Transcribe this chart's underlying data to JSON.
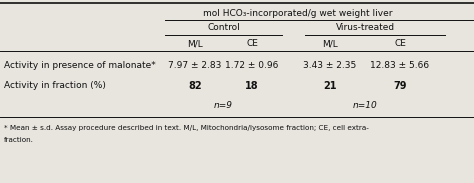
{
  "title": "mol HCO₃-incorporated/g wet weight liver",
  "group1_label": "Control",
  "group2_label": "Virus-treated",
  "col_headers": [
    "M/L",
    "CE",
    "M/L",
    "CE"
  ],
  "row1_label": "Activity in presence of malonate*",
  "row2_label": "Activity in fraction (%)",
  "row1_values": [
    "7.97 ± 2.83",
    "1.72 ± 0.96",
    "3.43 ± 2.35",
    "12.83 ± 5.66"
  ],
  "row2_values": [
    "82",
    "18",
    "21",
    "79"
  ],
  "n_control": "n=9",
  "n_virus": "n=10",
  "footnote1": "* Mean ± s.d. Assay procedure described in text. M/L, Mitochondria/lysosome fraction; CE, cell extra-",
  "footnote2": "fraction.",
  "bg_color": "#e8e5df",
  "text_color": "#111111"
}
